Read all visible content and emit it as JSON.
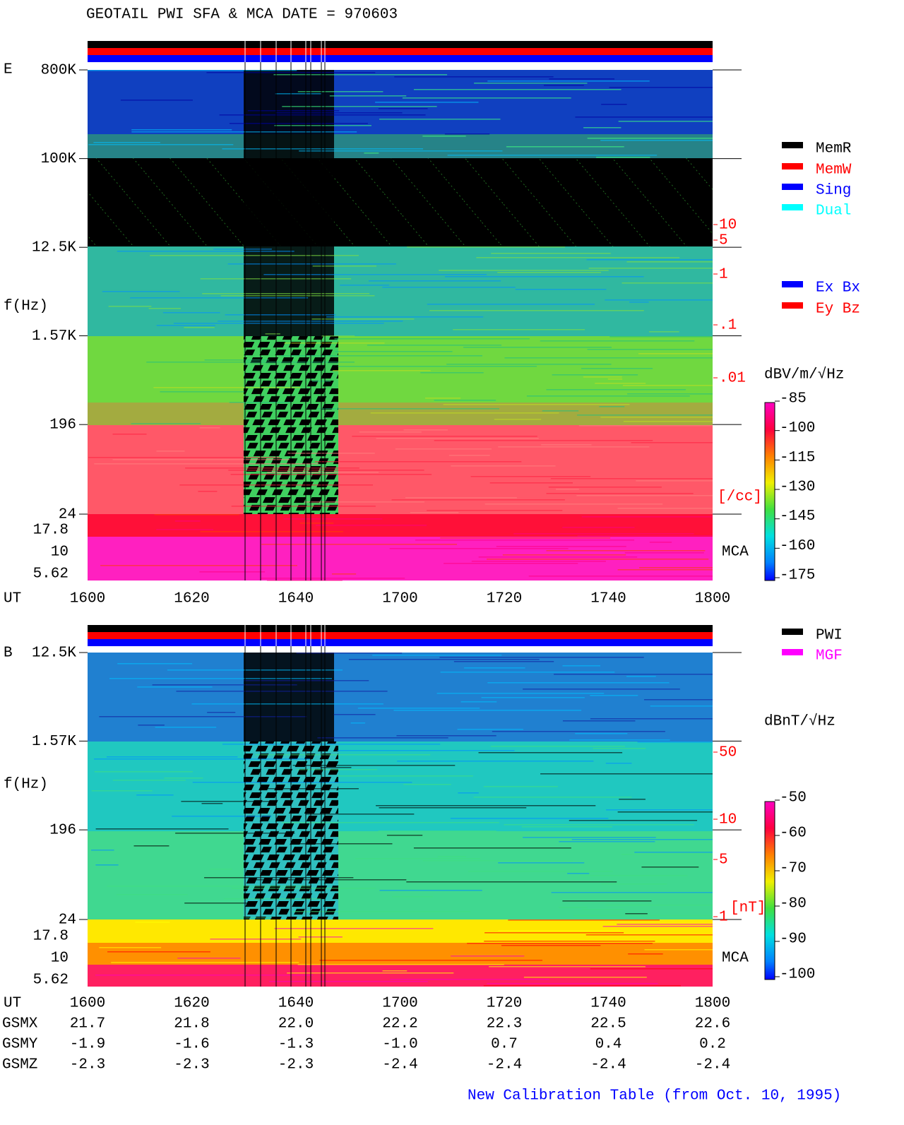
{
  "header": {
    "title": "GEOTAIL  PWI SFA & MCA   DATE = 970603"
  },
  "chart_data": [
    {
      "type": "spectrogram",
      "panel_label": "E",
      "ylabel": "f(Hz)",
      "xlabel": "UT",
      "ylim": [
        24,
        800000
      ],
      "log_y": true,
      "yticks": [
        {
          "value": 800000,
          "label": "800K"
        },
        {
          "value": 100000,
          "label": "100K"
        },
        {
          "value": 12500,
          "label": "12.5K"
        },
        {
          "value": 1570,
          "label": "1.57K"
        },
        196,
        24
      ],
      "mca_label": "MCA",
      "mca_ticks": [
        "17.8",
        "10",
        "5.62"
      ],
      "x": [
        "1600",
        "1620",
        "1640",
        "1700",
        "1720",
        "1740",
        "1800"
      ],
      "density_scale": {
        "ticks": [
          "10",
          "5",
          "1",
          ".1",
          ".01"
        ],
        "unit": "[/cc]"
      },
      "colorbar": {
        "label": "dBV/m/√Hz",
        "lim": [
          -85,
          -175
        ],
        "ticks": [
          -85,
          -100,
          -115,
          -130,
          -145,
          -160,
          -175
        ]
      },
      "legend": [
        {
          "name": "MemR",
          "color": "#000000"
        },
        {
          "name": "MemW",
          "color": "#ff0000"
        },
        {
          "name": "Sing",
          "color": "#0000ff"
        },
        {
          "name": "Dual",
          "color": "#00ffff"
        },
        {
          "name": "Ex Bx",
          "color": "#0000ff"
        },
        {
          "name": "Ey Bz",
          "color": "#ff0000"
        }
      ]
    },
    {
      "type": "spectrogram",
      "panel_label": "B",
      "ylabel": "f(Hz)",
      "xlabel": "UT",
      "ylim": [
        24,
        12500
      ],
      "log_y": true,
      "yticks": [
        {
          "value": 12500,
          "label": "12.5K"
        },
        {
          "value": 1570,
          "label": "1.57K"
        },
        196,
        24
      ],
      "mca_label": "MCA",
      "mca_ticks": [
        "17.8",
        "10",
        "5.62"
      ],
      "x": [
        "1600",
        "1620",
        "1640",
        "1700",
        "1720",
        "1740",
        "1800"
      ],
      "density_scale": {
        "ticks": [
          "50",
          "10",
          "5",
          "1"
        ],
        "unit": "[nT]"
      },
      "colorbar": {
        "label": "dBnT/√Hz",
        "lim": [
          -50,
          -100
        ],
        "ticks": [
          -50,
          -60,
          -70,
          -80,
          -90,
          -100
        ]
      },
      "legend": [
        {
          "name": "PWI",
          "color": "#000000"
        },
        {
          "name": "MGF",
          "color": "#ff00ff"
        }
      ]
    }
  ],
  "orbit": {
    "rows": [
      {
        "label": "GSMX",
        "values": [
          "21.7",
          "21.8",
          "22.0",
          "22.2",
          "22.3",
          "22.5",
          "22.6"
        ]
      },
      {
        "label": "GSMY",
        "values": [
          "-1.9",
          "-1.6",
          "-1.3",
          "-1.0",
          "0.7",
          "0.4",
          "0.2"
        ]
      },
      {
        "label": "GSMZ",
        "values": [
          "-2.3",
          "-2.3",
          "-2.3",
          "-2.4",
          "-2.4",
          "-2.4",
          "-2.4"
        ]
      }
    ]
  },
  "footer": "New Calibration Table (from Oct. 10, 1995)"
}
